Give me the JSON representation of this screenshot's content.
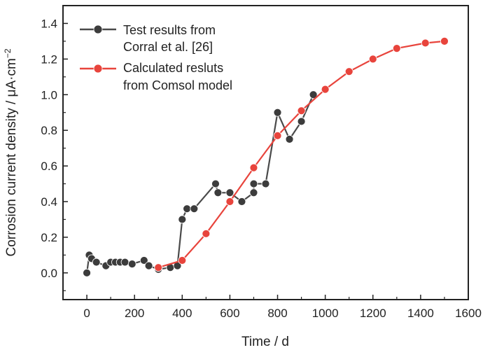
{
  "chart_data": {
    "type": "line",
    "xlabel": "Time / d",
    "ylabel": "Corrosion current density / μA·cm",
    "ylabel_sup": "−2",
    "xlim": [
      -100,
      1600
    ],
    "ylim": [
      -0.15,
      1.5
    ],
    "x_ticks": [
      0,
      200,
      400,
      600,
      800,
      1000,
      1200,
      1400,
      1600
    ],
    "x_tick_labels": [
      "0",
      "200",
      "400",
      "600",
      "800",
      "1000",
      "1200",
      "1400",
      "1600"
    ],
    "y_ticks": [
      0.0,
      0.2,
      0.4,
      0.6,
      0.8,
      1.0,
      1.2,
      1.4
    ],
    "y_tick_labels": [
      "0.0",
      "0.2",
      "0.4",
      "0.6",
      "0.8",
      "1.0",
      "1.2",
      "1.4"
    ],
    "grid": false,
    "legend_position": "top-left",
    "series": [
      {
        "name_lines": [
          "Test results from",
          "Corral et al. [26]"
        ],
        "color": "#4a4a4a",
        "marker_color": "#3c3c3c",
        "x": [
          0,
          10,
          20,
          40,
          80,
          100,
          120,
          140,
          160,
          190,
          240,
          260,
          300,
          350,
          380,
          400,
          420,
          450,
          540,
          550,
          600,
          650,
          700,
          700,
          750,
          800,
          850,
          900,
          950
        ],
        "y": [
          0.0,
          0.1,
          0.08,
          0.06,
          0.04,
          0.06,
          0.06,
          0.06,
          0.06,
          0.05,
          0.07,
          0.04,
          0.02,
          0.03,
          0.04,
          0.3,
          0.36,
          0.36,
          0.5,
          0.45,
          0.45,
          0.4,
          0.45,
          0.5,
          0.5,
          0.9,
          0.75,
          0.85,
          1.0
        ]
      },
      {
        "name_lines": [
          "Calculated resluts",
          "from Comsol model"
        ],
        "color": "#e8443c",
        "marker_color": "#e8443c",
        "x": [
          300,
          400,
          500,
          600,
          700,
          800,
          900,
          1000,
          1100,
          1200,
          1300,
          1420,
          1500
        ],
        "y": [
          0.03,
          0.07,
          0.22,
          0.4,
          0.59,
          0.77,
          0.91,
          1.03,
          1.13,
          1.2,
          1.26,
          1.29,
          1.3
        ]
      }
    ]
  }
}
